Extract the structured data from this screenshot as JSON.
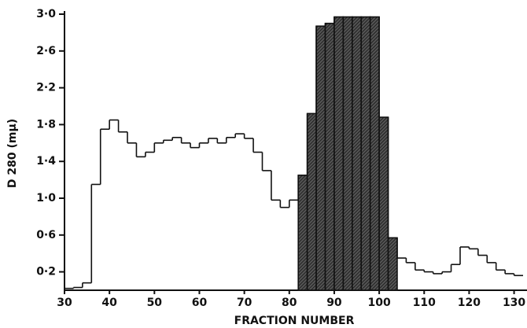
{
  "chart_data": {
    "type": "histogram",
    "x_label": "FRACTION NUMBER",
    "y_label": "D 280 (mμ)",
    "bins": [
      30,
      32,
      34,
      36,
      38,
      40,
      42,
      44,
      46,
      48,
      50,
      52,
      54,
      56,
      58,
      60,
      62,
      64,
      66,
      68,
      70,
      72,
      74,
      76,
      78,
      80,
      82,
      84,
      86,
      88,
      90,
      92,
      94,
      96,
      98,
      100,
      102,
      104,
      106,
      108,
      110,
      112,
      114,
      116,
      118,
      120,
      122,
      124,
      126,
      128,
      130,
      132
    ],
    "values": [
      0.02,
      0.03,
      0.08,
      1.15,
      1.75,
      1.85,
      1.72,
      1.6,
      1.45,
      1.5,
      1.6,
      1.63,
      1.66,
      1.6,
      1.55,
      1.6,
      1.65,
      1.6,
      1.66,
      1.7,
      1.65,
      1.5,
      1.3,
      0.98,
      0.9,
      0.98,
      1.25,
      1.92,
      2.87,
      2.9,
      2.97,
      2.97,
      2.97,
      2.97,
      2.97,
      1.88,
      0.57,
      0.35,
      0.3,
      0.22,
      0.2,
      0.18,
      0.2,
      0.28,
      0.47,
      0.45,
      0.38,
      0.3,
      0.22,
      0.18,
      0.16
    ],
    "highlight": [
      82,
      104
    ],
    "color": "#111111",
    "xlim": [
      30,
      132
    ],
    "ylim": [
      0,
      3
    ],
    "xticks": [
      30,
      40,
      50,
      60,
      70,
      80,
      90,
      100,
      110,
      120,
      130
    ],
    "yticks": [
      {
        "value": 0.2,
        "label": "0·2"
      },
      {
        "value": 0.6,
        "label": "0·6"
      },
      {
        "value": 1.0,
        "label": "1·0"
      },
      {
        "value": 1.4,
        "label": "1·4"
      },
      {
        "value": 1.8,
        "label": "1·8"
      },
      {
        "value": 2.2,
        "label": "2·2"
      },
      {
        "value": 2.6,
        "label": "2·6"
      },
      {
        "value": 3.0,
        "label": "3·0"
      }
    ]
  }
}
